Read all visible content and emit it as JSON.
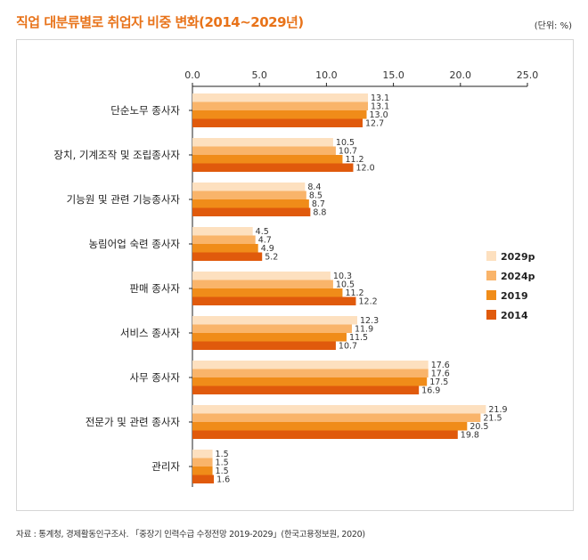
{
  "title": "직업 대분류별로 취업자 비중 변화(2014~2029년)",
  "unit": "(단위: %)",
  "source": "자료 : 통계청, 경제활동인구조사. 「중장기 인력수급 수정전망 2019-2029」(한국고용정보원, 2020)",
  "chart_data": {
    "type": "bar",
    "orientation": "horizontal",
    "title": "직업 대분류별로 취업자 비중 변화(2014~2029년)",
    "xlim": [
      0,
      25
    ],
    "xticks": [
      "0.0",
      "5.0",
      "10.0",
      "15.0",
      "20.0",
      "25.0"
    ],
    "tick_values": [
      0,
      5,
      10,
      15,
      20,
      25
    ],
    "legend_position": "right",
    "categories": [
      "단순노무 종사자",
      "장치, 기계조작 및 조립종사자",
      "기능원 및 관련 기능종사자",
      "농림어업 숙련 종사자",
      "판매 종사자",
      "서비스 종사자",
      "사무 종사자",
      "전문가 및 관련 종사자",
      "관리자"
    ],
    "series": [
      {
        "name": "2029p",
        "color": "#fde0bf",
        "values": [
          13.1,
          10.5,
          8.4,
          4.5,
          10.3,
          12.3,
          17.6,
          21.9,
          1.5
        ]
      },
      {
        "name": "2024p",
        "color": "#f9b46a",
        "values": [
          13.1,
          10.7,
          8.5,
          4.7,
          10.5,
          11.9,
          17.6,
          21.5,
          1.5
        ]
      },
      {
        "name": "2019",
        "color": "#f08c19",
        "values": [
          13.0,
          11.2,
          8.7,
          4.9,
          11.2,
          11.5,
          17.5,
          20.5,
          1.5
        ]
      },
      {
        "name": "2014",
        "color": "#e05a0c",
        "values": [
          12.7,
          12.0,
          8.8,
          5.2,
          12.2,
          10.7,
          16.9,
          19.8,
          1.6
        ]
      }
    ]
  }
}
